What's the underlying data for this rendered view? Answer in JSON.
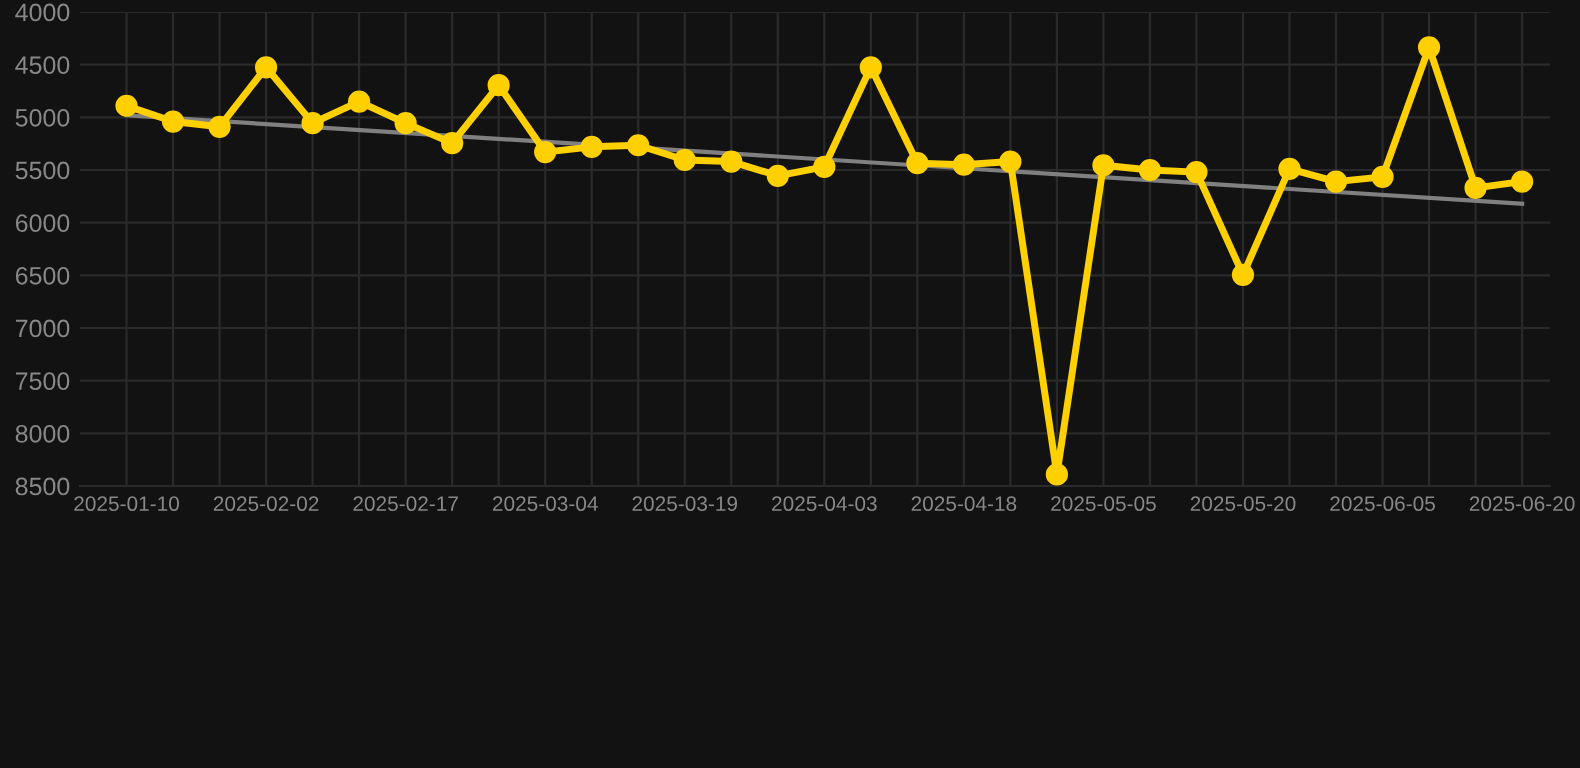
{
  "chart_data": {
    "type": "line",
    "categories": [
      "2025-01-10",
      null,
      null,
      "2025-02-02",
      null,
      null,
      "2025-02-17",
      null,
      null,
      "2025-03-04",
      null,
      null,
      "2025-03-19",
      null,
      null,
      "2025-04-03",
      null,
      null,
      "2025-04-18",
      null,
      null,
      "2025-05-05",
      null,
      null,
      "2025-05-20",
      null,
      null,
      "2025-06-05",
      null,
      null,
      "2025-06-20"
    ],
    "series": [
      {
        "color": "#ffd000",
        "marker": "circle",
        "values": [
          4890,
          5040,
          5090,
          4525,
          5055,
          4850,
          5055,
          5245,
          4695,
          5330,
          5280,
          5265,
          5405,
          5420,
          5555,
          5470,
          4525,
          5435,
          5450,
          5420,
          8390,
          5455,
          5500,
          5520,
          6495,
          5490,
          5610,
          5565,
          4335,
          5670,
          5610
        ]
      },
      {
        "color": "#808080",
        "marker": "none",
        "values": [
          4980,
          null,
          null,
          null,
          null,
          null,
          null,
          null,
          null,
          null,
          null,
          null,
          null,
          null,
          null,
          null,
          null,
          null,
          null,
          null,
          null,
          null,
          null,
          null,
          null,
          null,
          null,
          null,
          null,
          null,
          5820
        ]
      }
    ],
    "ylim": [
      8500,
      4000
    ],
    "yticks": [
      4000,
      4500,
      5000,
      5500,
      6000,
      6500,
      7000,
      7500,
      8000,
      8500
    ],
    "grid": true,
    "line_style": "solid"
  }
}
